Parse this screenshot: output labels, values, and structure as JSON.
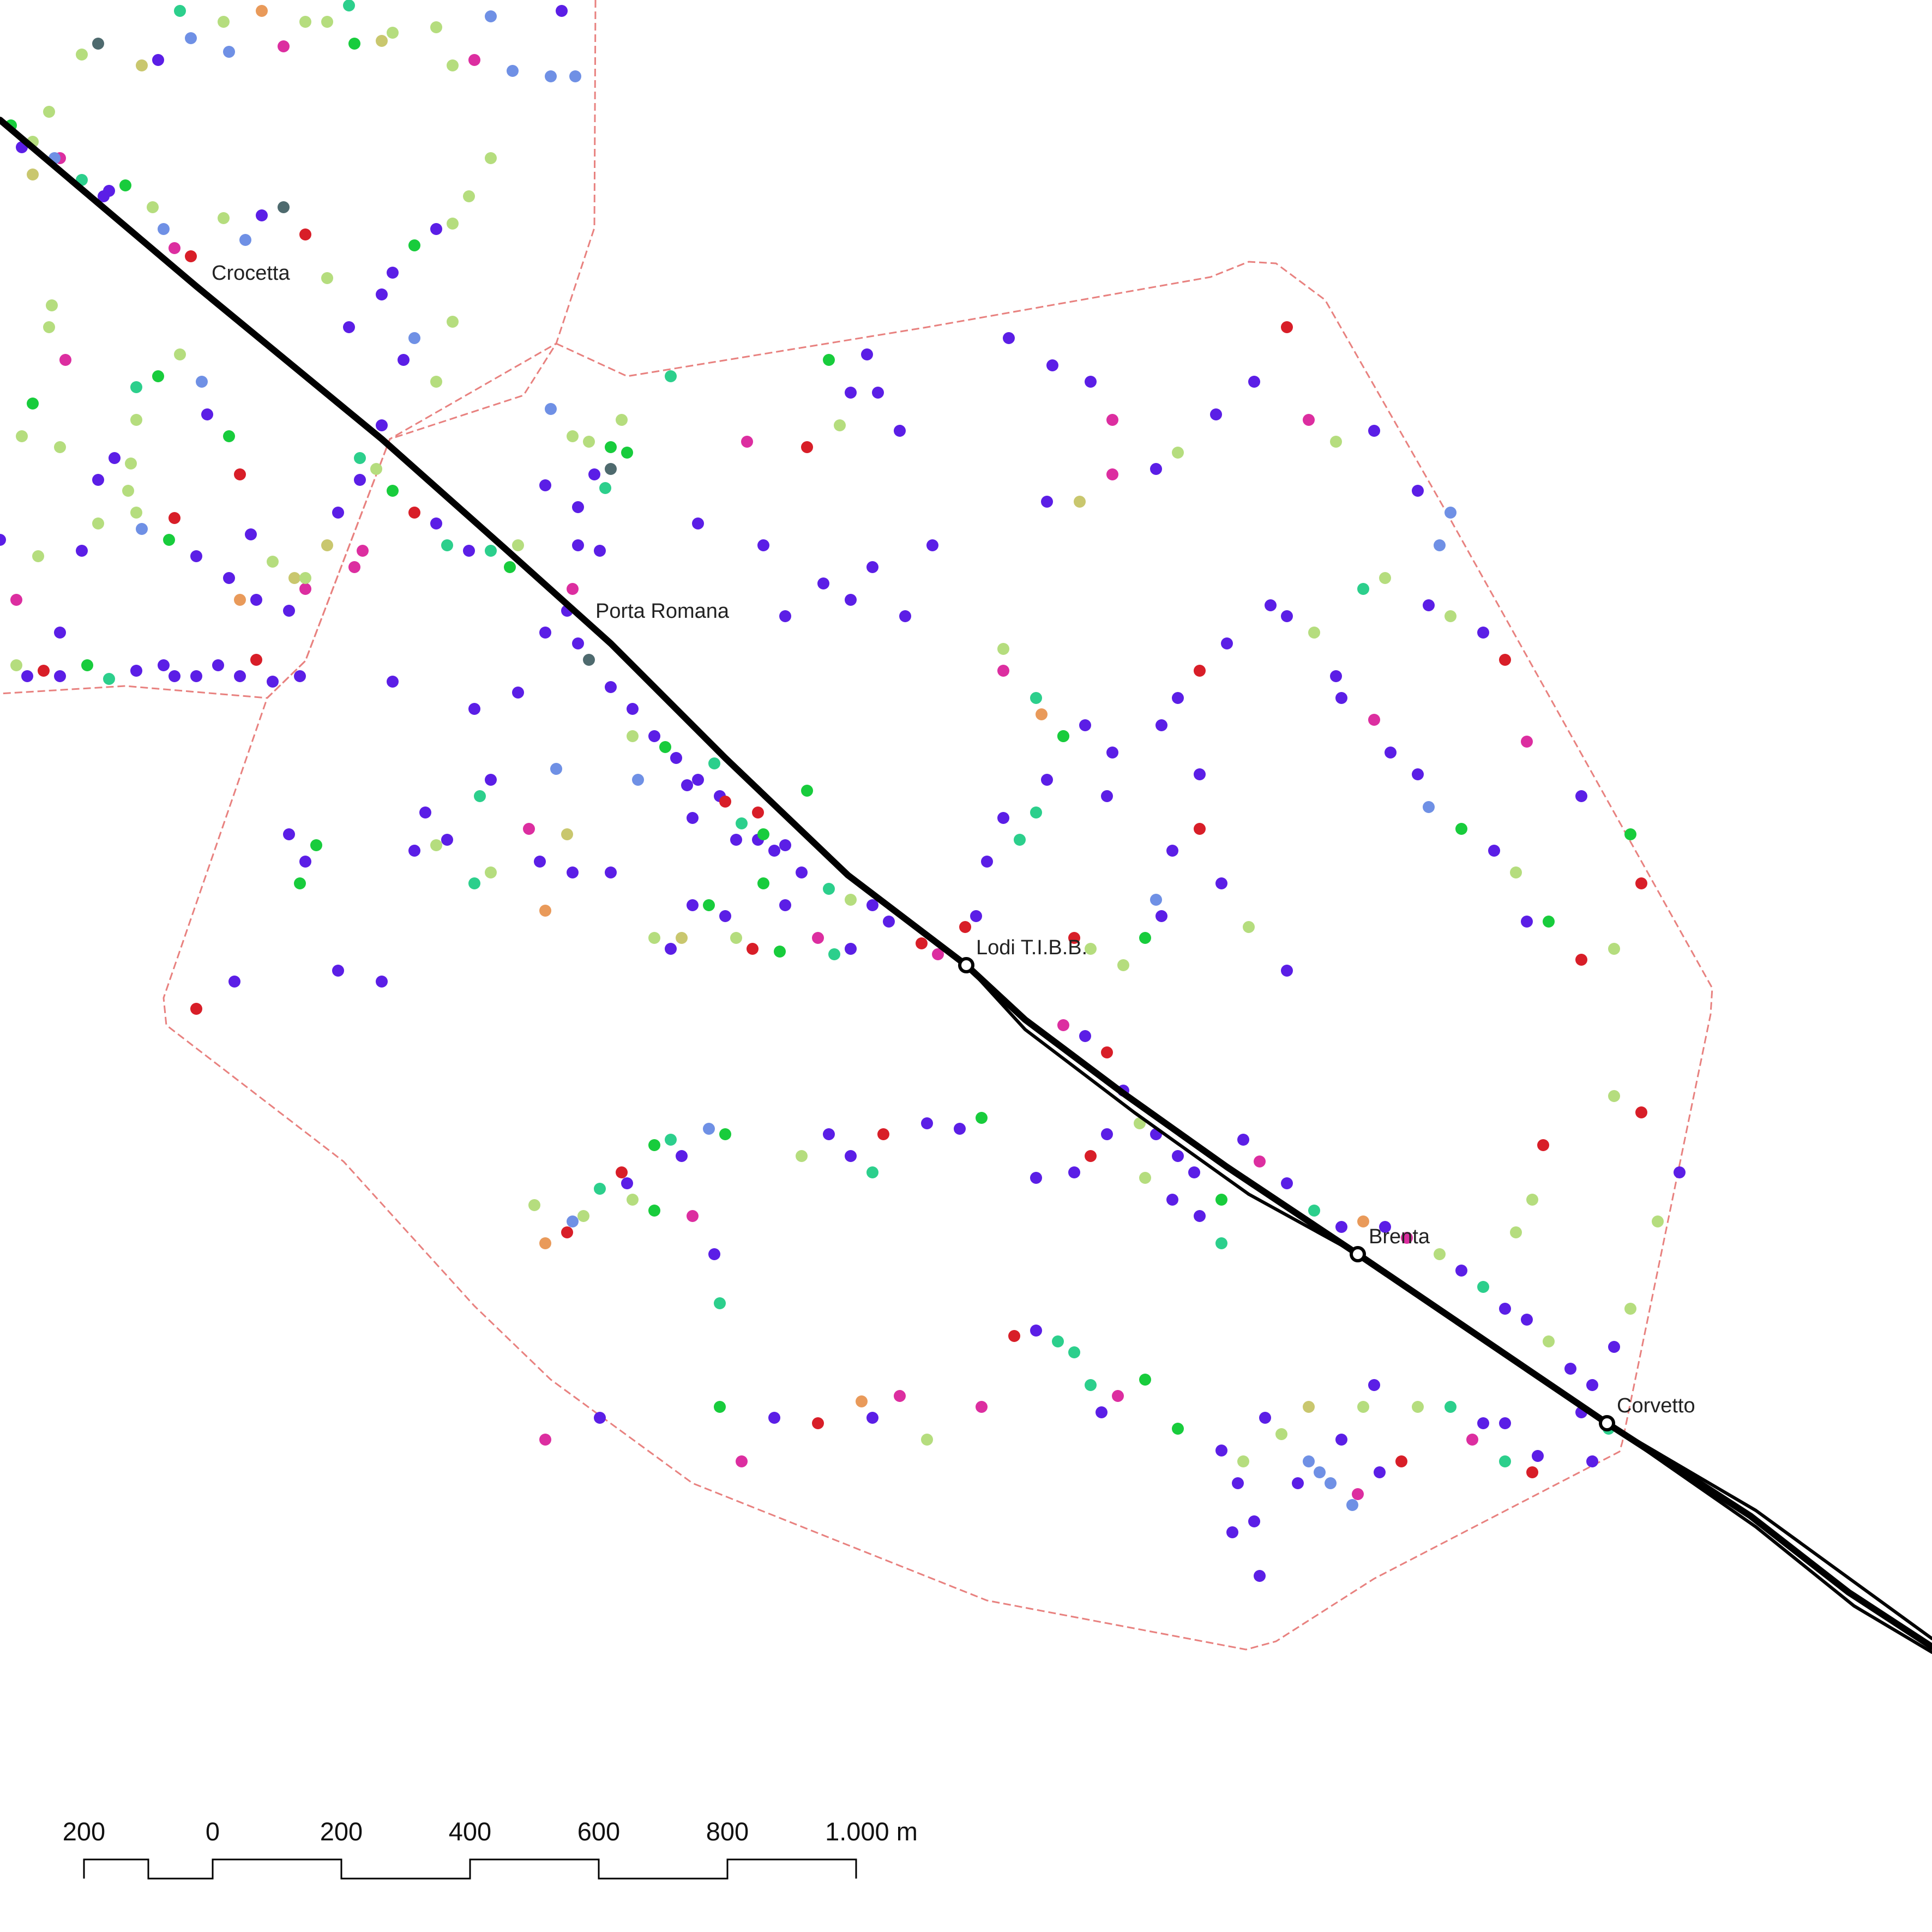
{
  "stations": [
    {
      "id": "crocetta",
      "label": "Crocetta"
    },
    {
      "id": "porta-romana",
      "label": "Porta Romana"
    },
    {
      "id": "lodi",
      "label": "Lodi T.I.B.B."
    },
    {
      "id": "brenta",
      "label": "Brenta"
    },
    {
      "id": "corvetto",
      "label": "Corvetto"
    }
  ],
  "scale_bar": {
    "ticks": [
      "200",
      "0",
      "200",
      "400",
      "600",
      "800",
      "1.000 m"
    ]
  },
  "colors": {
    "metro_line": "#000000",
    "catchment_boundary": "#e8817f",
    "poi_palette": [
      "#5b1ee6",
      "#dc2ea0",
      "#d81e28",
      "#e99a5a",
      "#b5dd7e",
      "#18cc3c",
      "#2ccf8c",
      "#6f90e5",
      "#4e6a6e",
      "#c9c76e",
      "#c85be0"
    ]
  }
}
